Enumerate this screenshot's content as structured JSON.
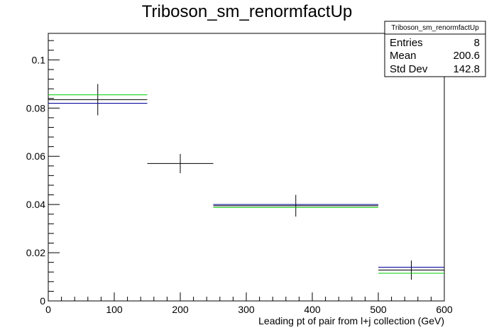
{
  "chart_data": {
    "type": "scatter",
    "title": "Triboson_sm_renormfactUp",
    "xlabel": "Leading pt of pair from l+j collection (GeV)",
    "ylabel": "",
    "xlim": [
      0,
      600
    ],
    "ylim": [
      0,
      0.111
    ],
    "grid": false,
    "x_ticks": [
      0,
      100,
      200,
      300,
      400,
      500,
      600
    ],
    "y_ticks": [
      0,
      0.02,
      0.04,
      0.06,
      0.08,
      0.1
    ],
    "x_tick_labels": [
      "0",
      "100",
      "200",
      "300",
      "400",
      "500",
      "600"
    ],
    "y_tick_labels": [
      "0",
      "0.02",
      "0.04",
      "0.06",
      "0.08",
      "0.1"
    ],
    "series": [
      {
        "color": "#000000",
        "points": [
          {
            "x": 75,
            "xlow": 0,
            "xhigh": 150,
            "y": 0.0835,
            "yerr": 0.0065
          },
          {
            "x": 200,
            "xlow": 150,
            "xhigh": 250,
            "y": 0.057,
            "yerr": 0.004
          },
          {
            "x": 375,
            "xlow": 250,
            "xhigh": 500,
            "y": 0.0395,
            "yerr": 0.0045
          },
          {
            "x": 550,
            "xlow": 500,
            "xhigh": 600,
            "y": 0.0128,
            "yerr": 0.004
          }
        ]
      },
      {
        "color": "#00cc00",
        "points": [
          {
            "x": 75,
            "xlow": 0,
            "xhigh": 150,
            "y": 0.0855
          },
          {
            "x": 375,
            "xlow": 250,
            "xhigh": 500,
            "y": 0.0388
          },
          {
            "x": 550,
            "xlow": 500,
            "xhigh": 600,
            "y": 0.0115
          }
        ]
      },
      {
        "color": "#000099",
        "points": [
          {
            "x": 75,
            "xlow": 0,
            "xhigh": 150,
            "y": 0.082
          },
          {
            "x": 375,
            "xlow": 250,
            "xhigh": 500,
            "y": 0.04
          },
          {
            "x": 550,
            "xlow": 500,
            "xhigh": 600,
            "y": 0.014
          }
        ]
      }
    ],
    "stats_box": {
      "title": "Triboson_sm_renormfactUp",
      "rows": [
        {
          "label": "Entries",
          "value": "8"
        },
        {
          "label": "Mean",
          "value": "200.6"
        },
        {
          "label": "Std Dev",
          "value": "142.8"
        }
      ]
    }
  }
}
